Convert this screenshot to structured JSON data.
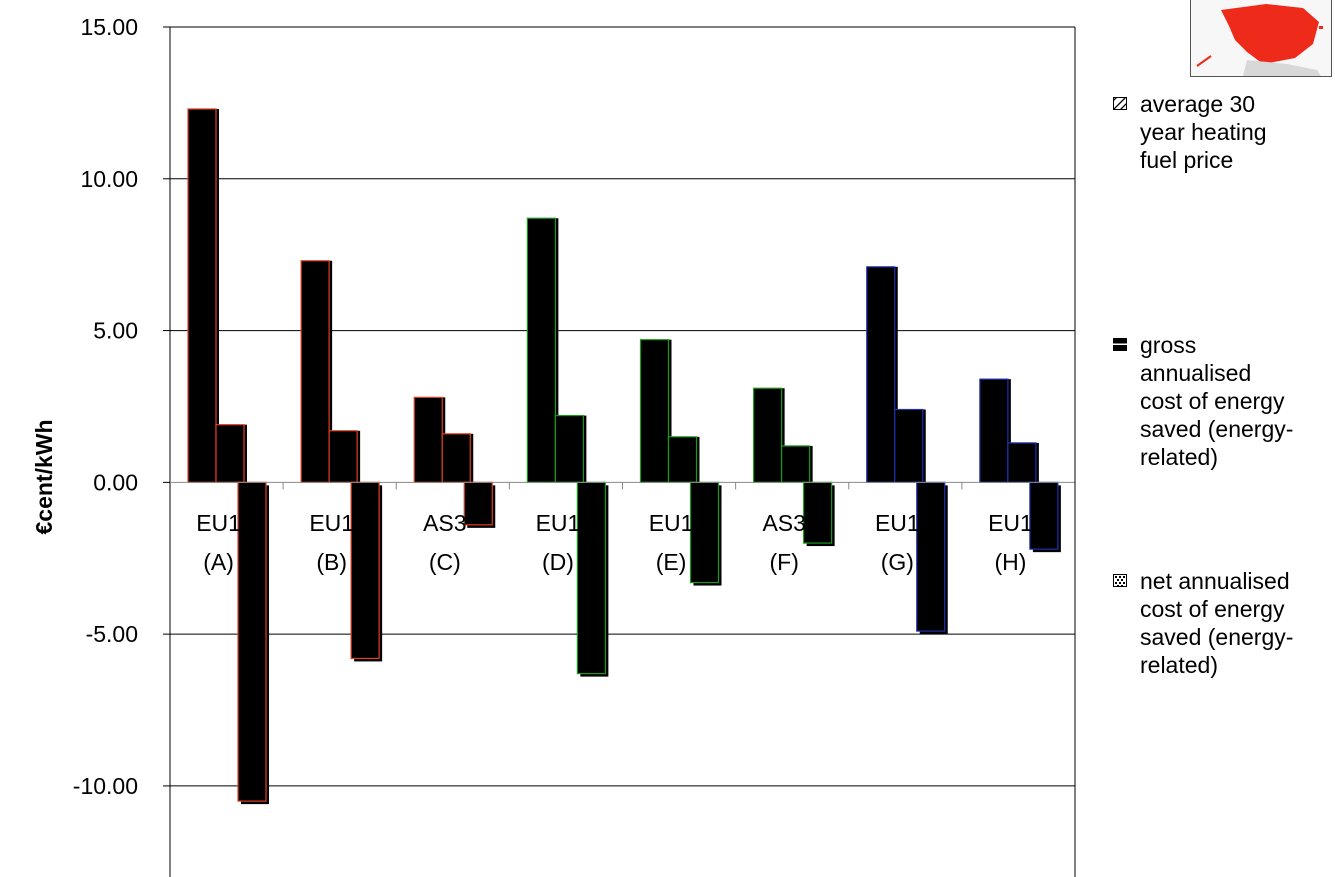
{
  "chart_data": {
    "type": "bar",
    "ylabel": "€cent/kWh",
    "ylim": [
      -13.0,
      15.0
    ],
    "yticks": [
      15.0,
      10.0,
      5.0,
      0.0,
      -5.0,
      -10.0
    ],
    "ytick_labels": [
      "15.00",
      "10.00",
      "5.00",
      "0.00",
      "-5.00",
      "-10.00"
    ],
    "grid": true,
    "legend_position": "right",
    "categories": [
      {
        "line1": "EU1",
        "line2": "(A)"
      },
      {
        "line1": "EU1",
        "line2": "(B)"
      },
      {
        "line1": "AS3",
        "line2": "(C)"
      },
      {
        "line1": "EU1",
        "line2": "(D)"
      },
      {
        "line1": "EU1",
        "line2": "(E)"
      },
      {
        "line1": "AS3",
        "line2": "(F)"
      },
      {
        "line1": "EU1",
        "line2": "(G)"
      },
      {
        "line1": "EU1",
        "line2": "(H)"
      }
    ],
    "series": [
      {
        "name": "average 30 year heating fuel price",
        "values": [
          12.3,
          7.3,
          2.8,
          8.7,
          4.7,
          3.1,
          7.1,
          3.4
        ]
      },
      {
        "name": "gross annualised cost of energy saved (energy-related)",
        "values": [
          1.9,
          1.7,
          1.6,
          2.2,
          1.5,
          1.2,
          2.4,
          1.3
        ]
      },
      {
        "name": "net annualised cost of energy saved (energy-related)",
        "values": [
          -10.5,
          -5.8,
          -1.4,
          -6.3,
          -3.3,
          -2.0,
          -4.9,
          -2.2
        ]
      }
    ],
    "bar_fill": "#000000",
    "group_outline_colors": [
      "#e04020",
      "#e04020",
      "#e04020",
      "#1a9a1a",
      "#1a9a1a",
      "#1a9a1a",
      "#2030b0",
      "#2030b0"
    ]
  },
  "legend": {
    "items": [
      {
        "lines": [
          "average 30",
          "year heating",
          "fuel price"
        ],
        "swatch_icon": "diagonal-hatch-icon"
      },
      {
        "lines": [
          "gross",
          "annualised",
          "cost of energy",
          "saved (energy-",
          "related)"
        ],
        "swatch_icon": "solid-black-icon"
      },
      {
        "lines": [
          "net annualised",
          "cost of energy",
          "saved (energy-",
          "related)"
        ],
        "swatch_icon": "dotted-pattern-icon"
      }
    ]
  },
  "map_thumbnail": {
    "icon": "spain-map-icon",
    "highlight_color": "#ee2a1a"
  }
}
